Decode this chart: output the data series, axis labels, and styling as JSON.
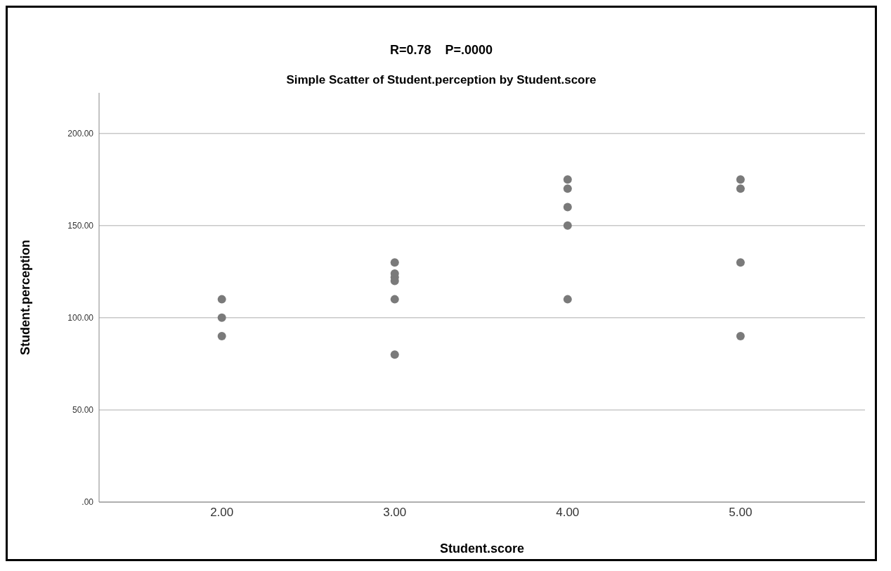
{
  "chart_data": {
    "type": "scatter",
    "title": "R=0.78    P=.0000",
    "subtitle": "Simple Scatter of Student.perception by Student.score",
    "xlabel": "Student.score",
    "ylabel": "Student.perception",
    "series": [
      {
        "color": "#7a7a7a",
        "x": [
          2,
          2,
          2,
          3,
          3,
          3,
          3,
          3,
          3,
          4,
          4,
          4,
          4,
          4,
          5,
          5,
          5,
          5
        ],
        "values": [
          110,
          100,
          90,
          130,
          124,
          122,
          120,
          110,
          80,
          175,
          170,
          160,
          150,
          110,
          175,
          170,
          130,
          90
        ]
      }
    ],
    "xlim": [
      1.29,
      5.72
    ],
    "xticks": [
      {
        "value": 2,
        "label": "2.00"
      },
      {
        "value": 3,
        "label": "3.00"
      },
      {
        "value": 4,
        "label": "4.00"
      },
      {
        "value": 5,
        "label": "5.00"
      }
    ],
    "ylim": [
      0,
      222
    ],
    "yticks": [
      {
        "value": 0,
        "label": ".00"
      },
      {
        "value": 50,
        "label": "50.00"
      },
      {
        "value": 100,
        "label": "100.00"
      },
      {
        "value": 150,
        "label": "150.00"
      },
      {
        "value": 200,
        "label": "200.00"
      }
    ],
    "grid": "y",
    "marker": "circle"
  }
}
